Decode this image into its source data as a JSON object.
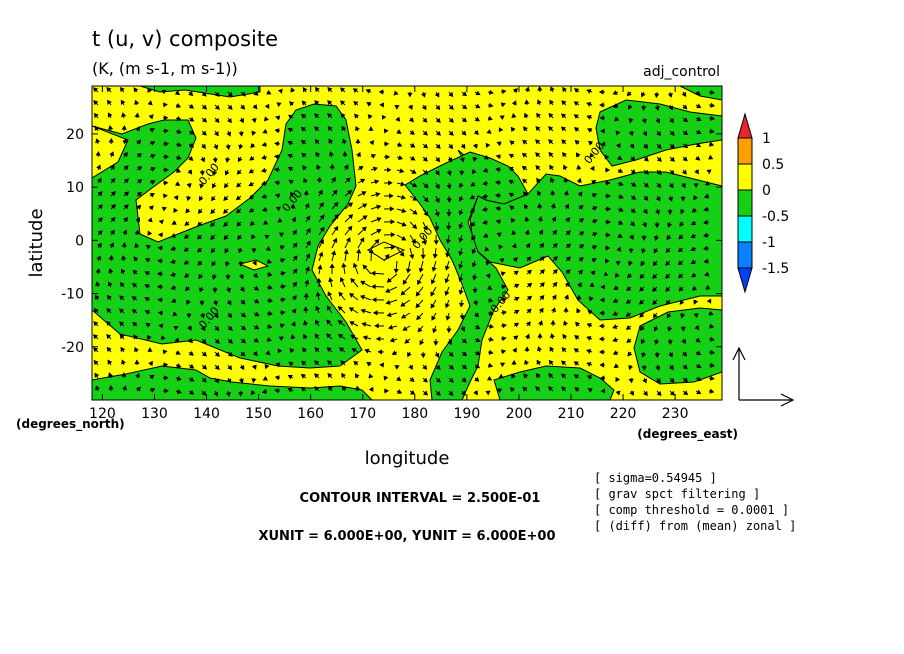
{
  "chart_data": {
    "type": "contour-vector",
    "title": "t (u, v) composite",
    "subtitle": "(K, (m s-1, m s-1))",
    "experiment": "adj_control",
    "xlabel": "longitude",
    "ylabel": "latitude",
    "x_unit_label": "(degrees_east)",
    "y_unit_label": "(degrees_north)",
    "xlim": [
      118,
      239
    ],
    "ylim": [
      -30,
      29
    ],
    "x_ticks": [
      120,
      130,
      140,
      150,
      160,
      170,
      180,
      190,
      200,
      210,
      220,
      230
    ],
    "y_ticks": [
      20,
      10,
      0,
      -10,
      -20
    ],
    "contour_interval_text": "CONTOUR INTERVAL = 2.500E-01",
    "vector_unit_text": "XUNIT = 6.000E+00, YUNIT = 6.000E+00",
    "contour_labels": [
      {
        "text": "0.00",
        "lon": 141,
        "lat": 12
      },
      {
        "text": "0.00",
        "lon": 157,
        "lat": 7
      },
      {
        "text": "0.00",
        "lon": 182,
        "lat": 0
      },
      {
        "text": "0.00",
        "lon": 141,
        "lat": -15
      },
      {
        "text": "0.00",
        "lon": 197,
        "lat": -12
      },
      {
        "text": "0.00",
        "lon": 215,
        "lat": 16
      }
    ],
    "colorbar": {
      "levels": [
        "1",
        "0.5",
        "0",
        "-0.5",
        "-1",
        "-1.5"
      ],
      "colors": [
        "#e8242e",
        "#ff9f00",
        "#ffff00",
        "#16d016",
        "#00ffff",
        "#0a82ff",
        "#0040ff"
      ]
    },
    "notes": [
      "[ sigma=0.54945 ]",
      "[ grav spct filtering ]",
      "[ comp threshold = 0.0001 ]",
      "[ (diff) from (mean) zonal ]"
    ],
    "fill_colors": {
      "positive": "#ffff00",
      "negative": "#16d016"
    }
  }
}
